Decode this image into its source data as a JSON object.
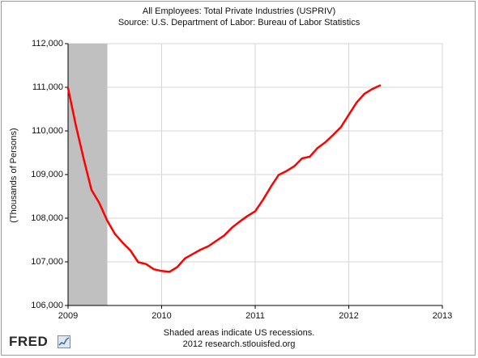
{
  "chart_data": {
    "type": "line",
    "title": "All Employees: Total Private Industries (USPRIV)",
    "subtitle": "Source: U.S. Department of Labor: Bureau of Labor Statistics",
    "ylabel": "(Thousands of Persons)",
    "xlabel": "",
    "ylim": [
      106000,
      112000
    ],
    "xlim": [
      2009,
      2013
    ],
    "yticks": [
      106000,
      107000,
      108000,
      109000,
      110000,
      111000,
      112000
    ],
    "ytick_labels": [
      "106,000",
      "107,000",
      "108,000",
      "109,000",
      "110,000",
      "111,000",
      "112,000"
    ],
    "xticks": [
      2009,
      2010,
      2011,
      2012,
      2013
    ],
    "xtick_labels": [
      "2009",
      "2010",
      "2011",
      "2012",
      "2013"
    ],
    "grid": true,
    "recession": {
      "start": 2009.0,
      "end": 2009.42
    },
    "series": [
      {
        "color": "#ff0000",
        "x": [
          2009.0,
          2009.083,
          2009.167,
          2009.25,
          2009.333,
          2009.417,
          2009.5,
          2009.583,
          2009.667,
          2009.75,
          2009.833,
          2009.917,
          2010.0,
          2010.083,
          2010.167,
          2010.25,
          2010.333,
          2010.417,
          2010.5,
          2010.583,
          2010.667,
          2010.75,
          2010.833,
          2010.917,
          2011.0,
          2011.083,
          2011.167,
          2011.25,
          2011.333,
          2011.417,
          2011.5,
          2011.583,
          2011.667,
          2011.75,
          2011.833,
          2011.917,
          2012.0,
          2012.083,
          2012.167,
          2012.25,
          2012.333
        ],
        "values": [
          110980,
          110130,
          109360,
          108650,
          108350,
          107950,
          107640,
          107440,
          107260,
          106990,
          106950,
          106830,
          106790,
          106770,
          106880,
          107080,
          107180,
          107280,
          107360,
          107480,
          107600,
          107780,
          107920,
          108050,
          108160,
          108420,
          108720,
          108990,
          109080,
          109190,
          109370,
          109410,
          109610,
          109740,
          109910,
          110090,
          110370,
          110650,
          110850,
          110960,
          111040
        ]
      }
    ]
  },
  "footer": {
    "recession_note": "Shaded areas indicate US recessions.",
    "source": "2012 research.stlouisfed.org"
  },
  "logo_text": "FRED"
}
